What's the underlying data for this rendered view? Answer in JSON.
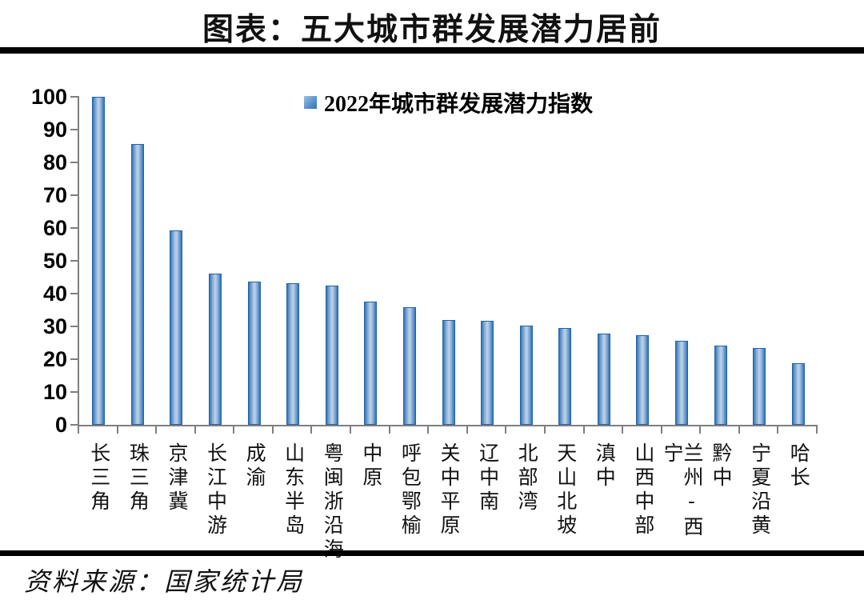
{
  "title": "图表：五大城市群发展潜力居前",
  "source": "资料来源：国家统计局",
  "chart_data": {
    "type": "bar",
    "legend": "2022年城市群发展潜力指数",
    "legend_position": "top-center",
    "categories": [
      "长三角",
      "珠三角",
      "京津冀",
      "长江中游",
      "成渝",
      "山东半岛",
      "粤闽浙沿海",
      "中原",
      "呼包鄂榆",
      "关中平原",
      "辽中南",
      "北部湾",
      "天山北坡",
      "滇中",
      "山西中部",
      "兰州-西宁",
      "黔中",
      "宁夏沿黄",
      "哈长"
    ],
    "values": [
      100,
      85.5,
      59.2,
      46.0,
      43.6,
      43.0,
      42.4,
      37.5,
      35.9,
      31.8,
      31.6,
      30.2,
      29.5,
      27.7,
      27.2,
      25.6,
      24.2,
      23.4,
      18.8
    ],
    "ylim": [
      0,
      100
    ],
    "ytick_step": 10,
    "grid": false,
    "colors": {
      "bar_edge": "#2E74B5",
      "bar_mid": "#B9CDE5",
      "bar_border": "#2463A6",
      "axis": "#7F7F7F",
      "text": "#000000"
    }
  }
}
